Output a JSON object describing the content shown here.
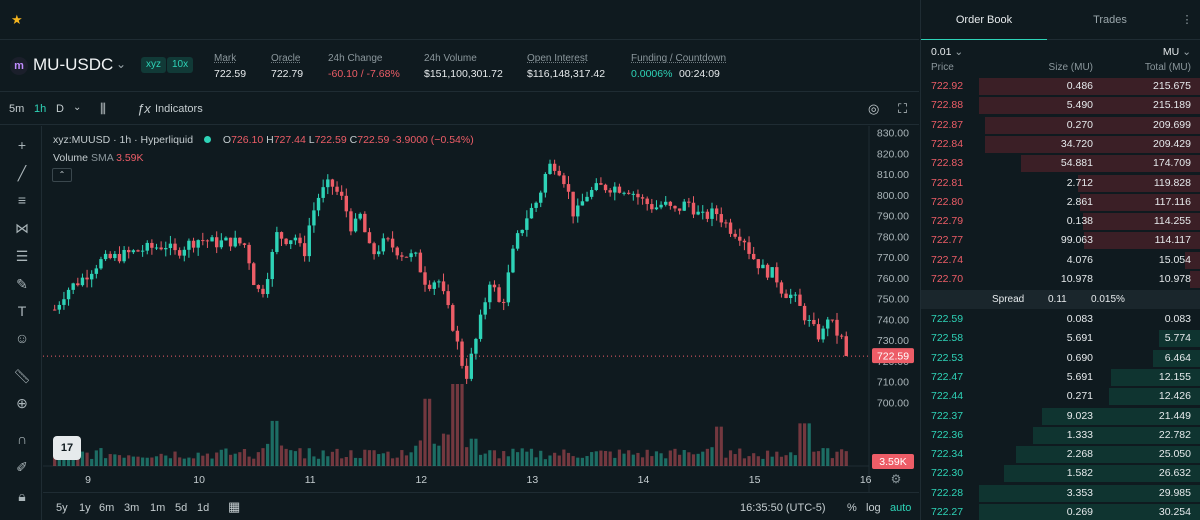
{
  "market": {
    "symbol": "MU-USDC",
    "badges": [
      "xyz",
      "10x"
    ],
    "stats": [
      {
        "label": "Mark",
        "value": "722.59",
        "tone": ""
      },
      {
        "label": "Oracle",
        "value": "722.79",
        "tone": ""
      },
      {
        "label": "24h Change",
        "value": "-60.10 / -7.68%",
        "tone": "neg"
      },
      {
        "label": "24h Volume",
        "value": "$151,100,301.72",
        "tone": ""
      },
      {
        "label": "Open Interest",
        "value": "$116,148,317.42",
        "tone": ""
      },
      {
        "label": "Funding / Countdown",
        "value": "0.0006%",
        "value2": "00:24:09",
        "tone": "pos"
      }
    ]
  },
  "toolbar": {
    "timeframes": [
      "5m",
      "1h",
      "D"
    ],
    "active_timeframe": "1h",
    "indicators_label": "Indicators"
  },
  "legend": {
    "title": "xyz:MUUSD · 1h · Hyperliquid",
    "o_label": "O",
    "o": "726.10",
    "h_label": "H",
    "h": "727.44",
    "l_label": "L",
    "l": "722.59",
    "c_label": "C",
    "c": "722.59",
    "change": "-3.9000 (−0.54%)",
    "volume_label": "Volume",
    "volume_sma_label": "SMA",
    "volume_value": "3.59K",
    "tv_logo": "17"
  },
  "chart_data": {
    "type": "candlestick",
    "y_ticks": [
      "830.00",
      "820.00",
      "810.00",
      "800.00",
      "790.00",
      "780.00",
      "770.00",
      "760.00",
      "750.00",
      "740.00",
      "730.00",
      "720.00",
      "710.00",
      "700.00"
    ],
    "ylim": [
      700,
      830
    ],
    "x_ticks": [
      {
        "label": "9",
        "day": 9
      },
      {
        "label": "10",
        "day": 10
      },
      {
        "label": "11",
        "day": 11
      },
      {
        "label": "12",
        "day": 12
      },
      {
        "label": "13",
        "day": 13
      },
      {
        "label": "14",
        "day": 14
      },
      {
        "label": "15",
        "day": 15
      },
      {
        "label": "16",
        "day": 16
      }
    ],
    "last_price": 722.59,
    "last_price_label": "722.59",
    "last_volume_label": "3.59K",
    "close_path": [
      [
        8.7,
        745
      ],
      [
        8.8,
        754
      ],
      [
        8.95,
        760
      ],
      [
        9.1,
        768
      ],
      [
        9.3,
        771
      ],
      [
        9.5,
        774
      ],
      [
        9.7,
        776
      ],
      [
        9.78,
        772
      ],
      [
        9.88,
        776
      ],
      [
        10.0,
        779
      ],
      [
        10.15,
        777
      ],
      [
        10.3,
        778
      ],
      [
        10.42,
        776
      ],
      [
        10.5,
        757
      ],
      [
        10.56,
        752
      ],
      [
        10.64,
        767
      ],
      [
        10.7,
        781
      ],
      [
        10.78,
        779
      ],
      [
        10.87,
        780
      ],
      [
        10.94,
        770
      ],
      [
        11.0,
        788
      ],
      [
        11.08,
        800
      ],
      [
        11.18,
        806
      ],
      [
        11.3,
        797
      ],
      [
        11.38,
        783
      ],
      [
        11.45,
        790
      ],
      [
        11.55,
        771
      ],
      [
        11.68,
        778
      ],
      [
        11.82,
        772
      ],
      [
        11.95,
        770
      ],
      [
        12.05,
        757
      ],
      [
        12.15,
        760
      ],
      [
        12.28,
        738
      ],
      [
        12.4,
        712
      ],
      [
        12.5,
        732
      ],
      [
        12.62,
        760
      ],
      [
        12.72,
        745
      ],
      [
        12.84,
        776
      ],
      [
        12.94,
        789
      ],
      [
        13.05,
        798
      ],
      [
        13.14,
        814
      ],
      [
        13.22,
        815
      ],
      [
        13.3,
        806
      ],
      [
        13.38,
        789
      ],
      [
        13.48,
        800
      ],
      [
        13.6,
        804
      ],
      [
        13.74,
        804
      ],
      [
        13.87,
        803
      ],
      [
        14.0,
        797
      ],
      [
        14.1,
        794
      ],
      [
        14.18,
        796
      ],
      [
        14.28,
        792
      ],
      [
        14.4,
        797
      ],
      [
        14.52,
        789
      ],
      [
        14.65,
        792
      ],
      [
        14.78,
        784
      ],
      [
        14.9,
        780
      ],
      [
        14.96,
        772
      ],
      [
        15.08,
        764
      ],
      [
        15.18,
        762
      ],
      [
        15.25,
        754
      ],
      [
        15.35,
        751
      ],
      [
        15.45,
        742
      ],
      [
        15.52,
        736
      ],
      [
        15.6,
        731
      ],
      [
        15.66,
        742
      ],
      [
        15.72,
        735
      ],
      [
        15.78,
        731
      ],
      [
        15.85,
        722.59
      ]
    ],
    "volume_spikes": [
      {
        "day": 12.33,
        "scale": 1.0
      },
      {
        "day": 10.68,
        "scale": 0.55
      },
      {
        "day": 12.05,
        "scale": 0.82
      },
      {
        "day": 15.45,
        "scale": 0.52
      },
      {
        "day": 14.68,
        "scale": 0.48
      }
    ]
  },
  "bottom": {
    "ranges": [
      "5y",
      "1y",
      "6m",
      "3m",
      "1m",
      "5d",
      "1d"
    ],
    "clock": "16:35:50 (UTC-5)",
    "percent": "%",
    "log": "log",
    "auto": "auto"
  },
  "orderbook": {
    "tabs": [
      "Order Book",
      "Trades"
    ],
    "tick": "0.01",
    "unit": "MU",
    "headers": {
      "price": "Price",
      "size": "Size (MU)",
      "total": "Total (MU)"
    },
    "asks": [
      {
        "price": "722.92",
        "size": "0.486",
        "total": "215.675",
        "depth": 1.0
      },
      {
        "price": "722.88",
        "size": "5.490",
        "total": "215.189",
        "depth": 0.998
      },
      {
        "price": "722.87",
        "size": "0.270",
        "total": "209.699",
        "depth": 0.972
      },
      {
        "price": "722.84",
        "size": "34.720",
        "total": "209.429",
        "depth": 0.971
      },
      {
        "price": "722.83",
        "size": "54.881",
        "total": "174.709",
        "depth": 0.81
      },
      {
        "price": "722.81",
        "size": "2.712",
        "total": "119.828",
        "depth": 0.556
      },
      {
        "price": "722.80",
        "size": "2.861",
        "total": "117.116",
        "depth": 0.543
      },
      {
        "price": "722.79",
        "size": "0.138",
        "total": "114.255",
        "depth": 0.53
      },
      {
        "price": "722.77",
        "size": "99.063",
        "total": "114.117",
        "depth": 0.529
      },
      {
        "price": "722.74",
        "size": "4.076",
        "total": "15.054",
        "depth": 0.07
      },
      {
        "price": "722.70",
        "size": "10.978",
        "total": "10.978",
        "depth": 0.051
      }
    ],
    "spread": {
      "label": "Spread",
      "value": "0.11",
      "percent": "0.015%"
    },
    "bids": [
      {
        "price": "722.59",
        "size": "0.083",
        "total": "0.083",
        "depth": 0.003
      },
      {
        "price": "722.58",
        "size": "5.691",
        "total": "5.774",
        "depth": 0.19
      },
      {
        "price": "722.53",
        "size": "0.690",
        "total": "6.464",
        "depth": 0.215
      },
      {
        "price": "722.47",
        "size": "5.691",
        "total": "12.155",
        "depth": 0.405
      },
      {
        "price": "722.44",
        "size": "0.271",
        "total": "12.426",
        "depth": 0.414
      },
      {
        "price": "722.37",
        "size": "9.023",
        "total": "21.449",
        "depth": 0.715
      },
      {
        "price": "722.36",
        "size": "1.333",
        "total": "22.782",
        "depth": 0.759
      },
      {
        "price": "722.34",
        "size": "2.268",
        "total": "25.050",
        "depth": 0.835
      },
      {
        "price": "722.30",
        "size": "1.582",
        "total": "26.632",
        "depth": 0.888
      },
      {
        "price": "722.28",
        "size": "3.353",
        "total": "29.985",
        "depth": 0.999
      },
      {
        "price": "722.27",
        "size": "0.269",
        "total": "30.254",
        "depth": 1.0
      }
    ]
  },
  "colors": {
    "up": "#2ed3b7",
    "down": "#ed5d67",
    "accent": "#2ed3b7",
    "background": "#0f1a1f"
  },
  "icons": {
    "favorite": "star-icon",
    "drawing_tools": [
      "crosshair-icon",
      "trendline-icon",
      "horizontal-lines-icon",
      "pattern-icon",
      "fib-icon",
      "brush-icon",
      "text-icon",
      "emoji-icon",
      "ruler-icon",
      "zoom-in-icon",
      "magnet-icon",
      "lock-draw-icon",
      "lock-icon"
    ]
  }
}
